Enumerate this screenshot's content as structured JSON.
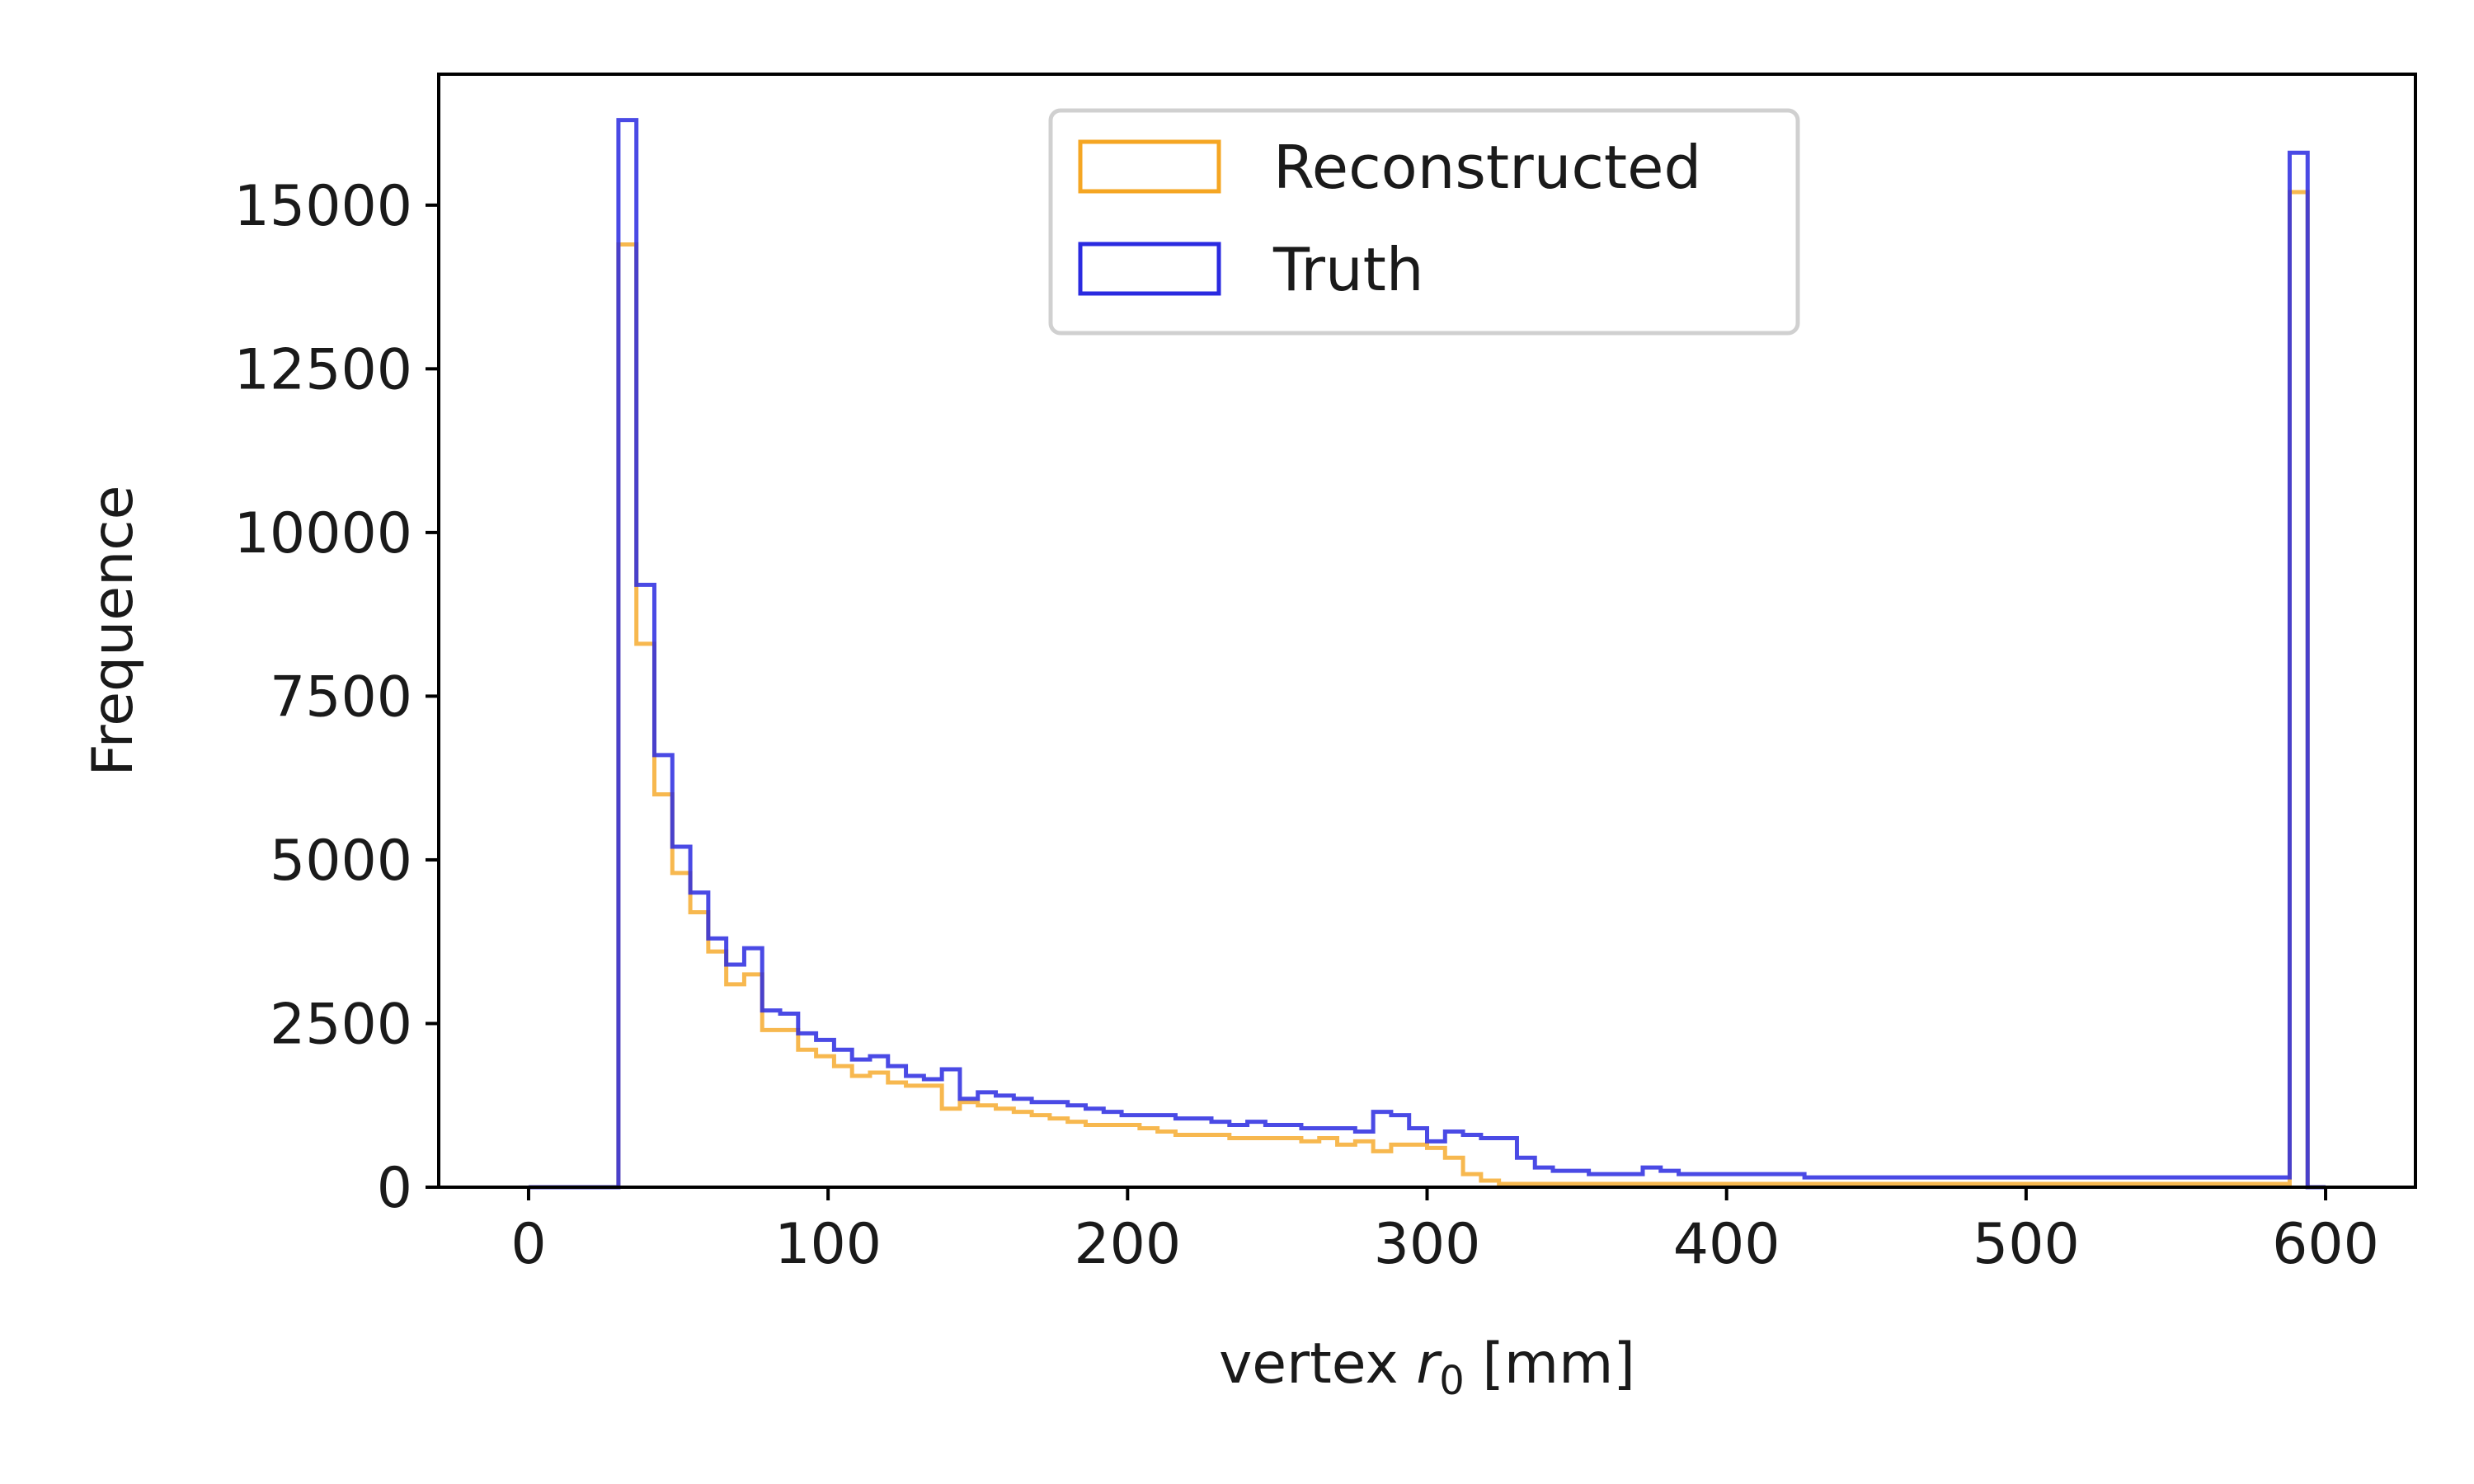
{
  "chart_data": {
    "type": "histogram-step",
    "xlabel": "vertex r₀ [mm]",
    "xlabel_parts": {
      "prefix": "vertex ",
      "var": "r",
      "sub": "0",
      "suffix": " [mm]"
    },
    "ylabel": "Frequence",
    "xlim": [
      -30,
      630
    ],
    "ylim": [
      0,
      17000
    ],
    "xticks": [
      0,
      100,
      200,
      300,
      400,
      500,
      600
    ],
    "yticks": [
      0,
      2500,
      5000,
      7500,
      10000,
      12500,
      15000
    ],
    "grid": false,
    "legend_placement": "top-center",
    "bin_width": 6,
    "x_start": 0,
    "series": [
      {
        "name": "Reconstructed",
        "color": "#f5a623",
        "values": [
          0,
          0,
          0,
          0,
          0,
          14400,
          8300,
          6000,
          4800,
          4200,
          3600,
          3100,
          3250,
          2400,
          2400,
          2100,
          2000,
          1850,
          1700,
          1750,
          1600,
          1550,
          1550,
          1200,
          1300,
          1250,
          1200,
          1150,
          1100,
          1050,
          1000,
          950,
          950,
          950,
          900,
          850,
          800,
          800,
          800,
          750,
          750,
          750,
          750,
          700,
          750,
          650,
          700,
          550,
          650,
          650,
          600,
          450,
          200,
          100,
          50,
          50,
          50,
          50,
          50,
          50,
          50,
          50,
          50,
          50,
          50,
          50,
          50,
          50,
          50,
          50,
          50,
          50,
          50,
          50,
          50,
          50,
          50,
          50,
          50,
          50,
          50,
          50,
          50,
          50,
          50,
          50,
          50,
          50,
          50,
          50,
          50,
          50,
          50,
          50,
          50,
          50,
          50,
          50,
          15200,
          0
        ]
      },
      {
        "name": "Truth",
        "color": "#2a2ae0",
        "values": [
          0,
          0,
          0,
          0,
          0,
          16300,
          9200,
          6600,
          5200,
          4500,
          3800,
          3400,
          3650,
          2700,
          2650,
          2350,
          2250,
          2100,
          1950,
          2000,
          1850,
          1700,
          1650,
          1800,
          1350,
          1450,
          1400,
          1350,
          1300,
          1300,
          1250,
          1200,
          1150,
          1100,
          1100,
          1100,
          1050,
          1050,
          1000,
          950,
          1000,
          950,
          950,
          900,
          900,
          900,
          850,
          1150,
          1100,
          900,
          700,
          850,
          800,
          750,
          750,
          450,
          300,
          250,
          250,
          200,
          200,
          200,
          300,
          250,
          200,
          200,
          200,
          200,
          200,
          200,
          200,
          150,
          150,
          150,
          150,
          150,
          150,
          150,
          150,
          150,
          150,
          150,
          150,
          150,
          150,
          150,
          150,
          150,
          150,
          150,
          150,
          150,
          150,
          150,
          150,
          150,
          150,
          150,
          15800,
          0
        ]
      }
    ]
  }
}
